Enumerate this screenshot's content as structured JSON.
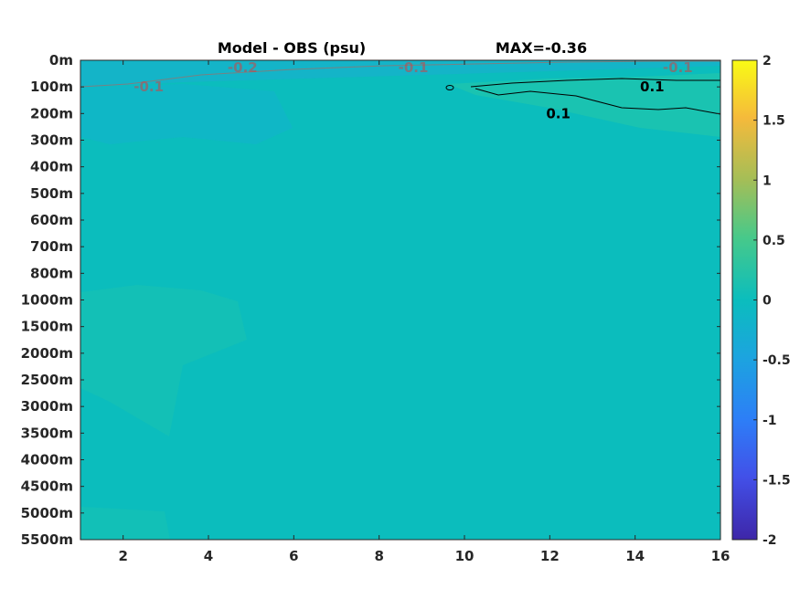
{
  "chart_data": {
    "type": "heatmap",
    "title": "Model - OBS (psu)",
    "subtitle": "MAX=-0.36",
    "x_ticks": [
      2,
      4,
      6,
      8,
      10,
      12,
      14,
      16
    ],
    "xlim": [
      1,
      16
    ],
    "y_ticks": [
      "0m",
      "100m",
      "200m",
      "300m",
      "400m",
      "500m",
      "600m",
      "700m",
      "800m",
      "1000m",
      "1500m",
      "2000m",
      "2500m",
      "3000m",
      "3500m",
      "4000m",
      "4500m",
      "5000m",
      "5500m"
    ],
    "colorbar": {
      "ticks": [
        "2",
        "1.5",
        "1",
        "0.5",
        "0",
        "-0.5",
        "-1",
        "-1.5",
        "-2"
      ],
      "range": [
        -2,
        2
      ],
      "colormap": "parula",
      "colors": [
        "#3e26a8",
        "#4250e8",
        "#2d7ef7",
        "#1ca4df",
        "#0bbdbd",
        "#47c98a",
        "#a4be57",
        "#f5ba3b",
        "#f9fb15"
      ]
    },
    "contour_labels": [
      {
        "text": "-0.1",
        "x": 2.6,
        "y": "100m",
        "color": "#cc4444"
      },
      {
        "text": "-0.2",
        "x": 4.8,
        "y": "0m",
        "color": "#cc4444"
      },
      {
        "text": "-0.1",
        "x": 8.8,
        "y": "0m",
        "color": "#cc4444"
      },
      {
        "text": "-0.1",
        "x": 15.0,
        "y": "0m",
        "color": "#cc4444"
      },
      {
        "text": "0.1",
        "x": 14.4,
        "y": "100m",
        "color": "#000000"
      },
      {
        "text": "0.1",
        "x": 12.2,
        "y": "200m",
        "color": "#000000"
      }
    ],
    "background_color": "#0bbdbd",
    "grid": false
  }
}
